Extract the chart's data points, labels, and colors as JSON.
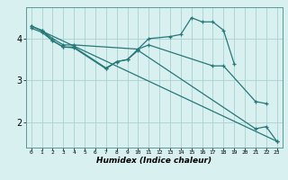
{
  "bg_color": "#d8f0f0",
  "grid_color": "#b0d4d4",
  "line_color": "#267878",
  "xlabel": "Humidex (Indice chaleur)",
  "xlim": [
    -0.5,
    23.5
  ],
  "ylim": [
    1.4,
    4.75
  ],
  "yticks": [
    2,
    3,
    4
  ],
  "xticks": [
    0,
    1,
    2,
    3,
    4,
    5,
    6,
    7,
    8,
    9,
    10,
    11,
    12,
    13,
    14,
    15,
    16,
    17,
    18,
    19,
    20,
    21,
    22,
    23
  ],
  "lines": [
    {
      "x": [
        0,
        1,
        2,
        3,
        4,
        10,
        11,
        13,
        14,
        15,
        16,
        17,
        18,
        19
      ],
      "y": [
        4.3,
        4.2,
        4.0,
        3.85,
        3.85,
        3.75,
        4.0,
        4.05,
        4.1,
        4.5,
        4.4,
        4.4,
        4.2,
        3.4
      ]
    },
    {
      "x": [
        0,
        1,
        2,
        3,
        4,
        7,
        8,
        9,
        10,
        11,
        17,
        18,
        21,
        22
      ],
      "y": [
        4.25,
        4.15,
        3.95,
        3.8,
        3.8,
        3.3,
        3.45,
        3.5,
        3.75,
        3.85,
        3.35,
        3.35,
        2.5,
        2.45
      ]
    },
    {
      "x": [
        1,
        2,
        3,
        4,
        7,
        8,
        9,
        10,
        21,
        22,
        23
      ],
      "y": [
        4.2,
        3.95,
        3.8,
        3.78,
        3.28,
        3.45,
        3.5,
        3.72,
        1.85,
        1.9,
        1.55
      ]
    },
    {
      "x": [
        0,
        23
      ],
      "y": [
        4.3,
        1.55
      ]
    }
  ]
}
